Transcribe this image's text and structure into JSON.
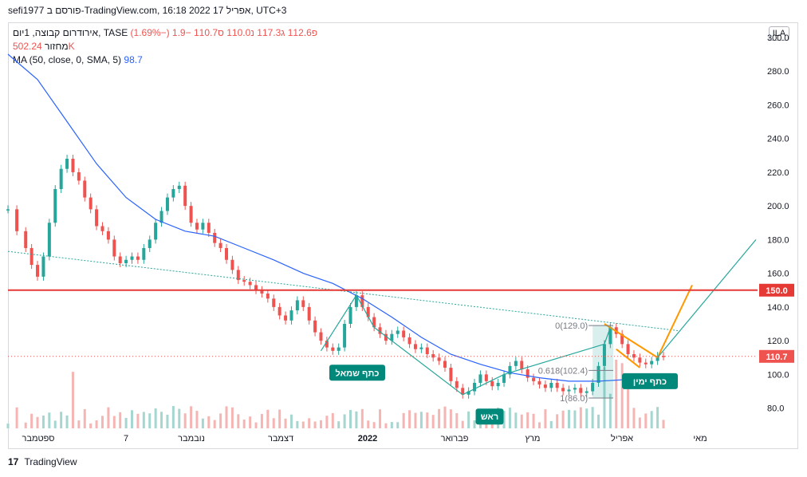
{
  "header": {
    "text": "sefi1977 פורסם ב-TradingView.com, 16:18 2022 אפריל 17, UTC+3"
  },
  "legend": {
    "symbol": "אירודרום קבוצה, 1יום, TASE",
    "ohlc": [
      {
        "label": "פ",
        "value": "112.6"
      },
      {
        "label": "ג",
        "value": "117.3"
      },
      {
        "label": "נ",
        "value": "110.0"
      },
      {
        "label": "ס",
        "value": "110.7"
      }
    ],
    "change": "−1.9 (−1.69%)",
    "volume_label": "מחזור",
    "volume_value": "502.24K",
    "ma_label": "MA (50, close, 0, SMA, 5)",
    "ma_value": "98.7",
    "ila_label": "ILA"
  },
  "brand": {
    "logo": "17",
    "name": "TradingView"
  },
  "colors": {
    "up": "#26a69a",
    "down": "#ef5350",
    "ma": "#2962ff",
    "pattern": "#26a69a",
    "flag": "#ff9800",
    "resistance": "#e53935"
  },
  "chart_data": {
    "type": "candlestick",
    "title": "אירודרום קבוצה, 1יום, TASE",
    "y_axis": {
      "ylim": [
        68,
        308
      ],
      "ticks": [
        "300.0",
        "280.0",
        "260.0",
        "240.0",
        "220.0",
        "200.0",
        "180.0",
        "160.0",
        "140.0",
        "120.0",
        "100.0",
        "80.0"
      ]
    },
    "x_axis": {
      "labels": [
        "ספטמבר",
        "7",
        "נובמבר",
        "דצמבר",
        "2022",
        "פברואר",
        "מרץ",
        "אפריל",
        "מאי"
      ]
    },
    "price_series_approx": [
      [
        0,
        198
      ],
      [
        3,
        185
      ],
      [
        6,
        175
      ],
      [
        8,
        165
      ],
      [
        10,
        158
      ],
      [
        12,
        170
      ],
      [
        14,
        190
      ],
      [
        16,
        210
      ],
      [
        18,
        222
      ],
      [
        20,
        228
      ],
      [
        22,
        220
      ],
      [
        24,
        215
      ],
      [
        26,
        205
      ],
      [
        28,
        198
      ],
      [
        30,
        188
      ],
      [
        32,
        185
      ],
      [
        34,
        180
      ],
      [
        36,
        170
      ],
      [
        38,
        166
      ],
      [
        40,
        168
      ],
      [
        42,
        170
      ],
      [
        44,
        168
      ],
      [
        46,
        175
      ],
      [
        48,
        180
      ],
      [
        50,
        190
      ],
      [
        52,
        197
      ],
      [
        54,
        205
      ],
      [
        56,
        210
      ],
      [
        58,
        212
      ],
      [
        60,
        200
      ],
      [
        62,
        190
      ],
      [
        64,
        186
      ],
      [
        66,
        190
      ],
      [
        68,
        184
      ],
      [
        70,
        178
      ],
      [
        72,
        175
      ],
      [
        74,
        168
      ],
      [
        76,
        162
      ],
      [
        78,
        156
      ],
      [
        80,
        155
      ],
      [
        82,
        153
      ],
      [
        84,
        150
      ],
      [
        86,
        148
      ],
      [
        88,
        145
      ],
      [
        90,
        140
      ],
      [
        92,
        135
      ],
      [
        94,
        132
      ],
      [
        96,
        138
      ],
      [
        98,
        144
      ],
      [
        100,
        140
      ],
      [
        102,
        132
      ],
      [
        104,
        125
      ],
      [
        106,
        120
      ],
      [
        108,
        116
      ],
      [
        110,
        114
      ],
      [
        112,
        116
      ],
      [
        114,
        130
      ],
      [
        116,
        140
      ],
      [
        118,
        147
      ],
      [
        120,
        140
      ],
      [
        122,
        134
      ],
      [
        124,
        128
      ],
      [
        126,
        124
      ],
      [
        128,
        120
      ],
      [
        130,
        124
      ],
      [
        132,
        126
      ],
      [
        134,
        122
      ],
      [
        136,
        118
      ],
      [
        138,
        115
      ],
      [
        140,
        116
      ],
      [
        142,
        112
      ],
      [
        144,
        110
      ],
      [
        146,
        108
      ],
      [
        148,
        104
      ],
      [
        150,
        96
      ],
      [
        152,
        92
      ],
      [
        154,
        88
      ],
      [
        156,
        90
      ],
      [
        158,
        95
      ],
      [
        160,
        100
      ],
      [
        162,
        96
      ],
      [
        164,
        93
      ],
      [
        166,
        95
      ],
      [
        168,
        100
      ],
      [
        170,
        105
      ],
      [
        172,
        108
      ],
      [
        174,
        103
      ],
      [
        176,
        98
      ],
      [
        178,
        96
      ],
      [
        180,
        94
      ],
      [
        182,
        92
      ],
      [
        184,
        95
      ],
      [
        186,
        92
      ],
      [
        188,
        90
      ],
      [
        190,
        91
      ],
      [
        192,
        92
      ],
      [
        194,
        89
      ],
      [
        196,
        90
      ],
      [
        198,
        95
      ],
      [
        200,
        105
      ],
      [
        202,
        118
      ],
      [
        204,
        128
      ],
      [
        206,
        124
      ],
      [
        208,
        118
      ],
      [
        210,
        112
      ],
      [
        212,
        110
      ],
      [
        214,
        107
      ],
      [
        216,
        106
      ],
      [
        218,
        108
      ],
      [
        220,
        111
      ],
      [
        222,
        110.7
      ]
    ],
    "ma50_approx": [
      [
        0,
        290
      ],
      [
        10,
        275
      ],
      [
        20,
        250
      ],
      [
        30,
        225
      ],
      [
        40,
        205
      ],
      [
        50,
        192
      ],
      [
        60,
        185
      ],
      [
        70,
        182
      ],
      [
        80,
        175
      ],
      [
        90,
        168
      ],
      [
        100,
        160
      ],
      [
        110,
        154
      ],
      [
        120,
        145
      ],
      [
        130,
        134
      ],
      [
        140,
        122
      ],
      [
        150,
        112
      ],
      [
        160,
        106
      ],
      [
        170,
        101
      ],
      [
        180,
        98
      ],
      [
        190,
        96
      ],
      [
        200,
        96
      ],
      [
        210,
        97
      ],
      [
        222,
        98.7
      ]
    ],
    "annotations": {
      "head_and_shoulders_labels": [
        "כתף שמאל",
        "ראש",
        "כתף ימין"
      ],
      "fib_labels": [
        "0(129.0)",
        "0.618(102.4)",
        "1(86.0)"
      ],
      "resistance_value": "150.0",
      "last_price_value": "110.7"
    }
  }
}
